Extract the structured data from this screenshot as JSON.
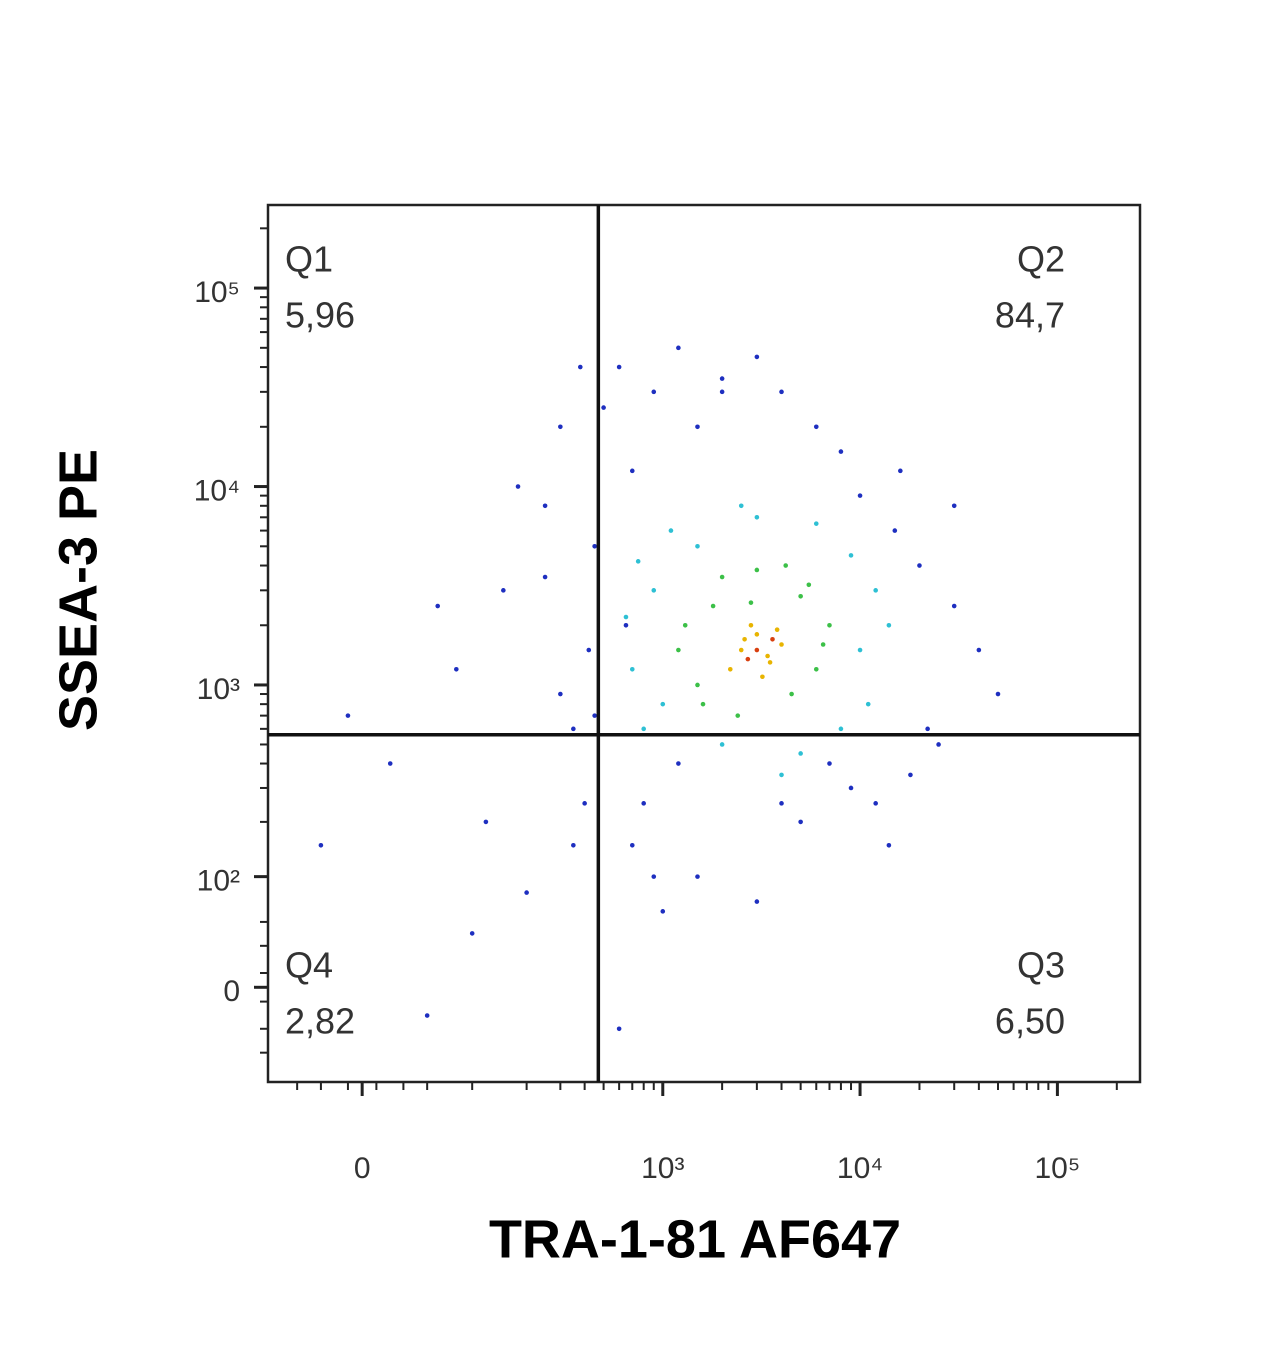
{
  "chart_data": {
    "type": "scatter",
    "x_label": "TRA-1-81 AF647",
    "y_label": "SSEA-3 PE",
    "xscale": "biexponential",
    "yscale": "biexponential",
    "xlim": [
      -80,
      262144
    ],
    "ylim": [
      -80,
      262144
    ],
    "xticks": [
      0,
      {
        "value": 1000,
        "label": "10³"
      },
      {
        "value": 10000,
        "label": "10⁴"
      },
      {
        "value": 100000,
        "label": "10⁵"
      }
    ],
    "yticks": [
      0,
      {
        "value": 100,
        "label": "10²"
      },
      {
        "value": 1000,
        "label": "10³"
      },
      {
        "value": 10000,
        "label": "10⁴"
      },
      {
        "value": 100000,
        "label": "10⁵"
      }
    ],
    "xminorticks": [
      -50,
      -30,
      -10,
      10,
      30,
      50,
      100,
      200,
      300,
      400,
      500,
      600,
      700,
      800,
      900,
      2000,
      3000,
      4000,
      5000,
      6000,
      7000,
      8000,
      9000,
      20000,
      30000,
      40000,
      50000,
      60000,
      70000,
      80000,
      90000,
      200000
    ],
    "yminorticks": [
      -50,
      -30,
      -10,
      10,
      30,
      50,
      200,
      300,
      400,
      500,
      600,
      700,
      800,
      900,
      2000,
      3000,
      4000,
      5000,
      6000,
      7000,
      8000,
      9000,
      20000,
      30000,
      40000,
      50000,
      60000,
      70000,
      80000,
      90000,
      200000
    ],
    "gate": {
      "x": 470,
      "y": 560
    },
    "quadrants": {
      "names": [
        "Q1",
        "Q2",
        "Q3",
        "Q4"
      ],
      "values": [
        5.96,
        84.7,
        6.5,
        2.82
      ],
      "value_labels": [
        "5,96",
        "84,7",
        "6,50",
        "2,82"
      ]
    },
    "series": [
      {
        "color": "#1e2fc0",
        "x": [
          -30,
          20,
          80,
          150,
          250,
          300,
          350,
          400,
          420,
          450,
          200,
          100,
          50,
          120,
          380,
          300,
          250,
          180,
          60,
          -10,
          500,
          600,
          700,
          900,
          1200,
          1500,
          2000,
          3000,
          4000,
          6000,
          8000,
          10000,
          15000,
          20000,
          30000,
          40000,
          50000,
          25000,
          18000,
          12000,
          700,
          1500,
          3000,
          5000,
          9000,
          14000,
          22000,
          800,
          1200,
          600,
          2000,
          4000,
          7000,
          900,
          450,
          350,
          30000,
          1000,
          650,
          16000
        ],
        "y": [
          150,
          400,
          1200,
          3000,
          8000,
          20000,
          600,
          250,
          1500,
          5000,
          80,
          40,
          -20,
          200,
          40000,
          900,
          3500,
          10000,
          2500,
          700,
          25000,
          40000,
          12000,
          30000,
          50000,
          20000,
          35000,
          45000,
          30000,
          20000,
          15000,
          9000,
          6000,
          4000,
          2500,
          1500,
          900,
          500,
          350,
          250,
          150,
          100,
          70,
          200,
          300,
          150,
          600,
          250,
          400,
          -30,
          30000,
          250,
          400,
          100,
          700,
          150,
          8000,
          60,
          2000,
          12000
        ]
      },
      {
        "color": "#2ec0d4",
        "x": [
          800,
          900,
          1100,
          10000,
          12000,
          700,
          1500,
          8000,
          9000,
          3000,
          2000,
          5000,
          14000,
          650,
          1000,
          6000,
          4000,
          11000,
          2500,
          750
        ],
        "y": [
          600,
          3000,
          6000,
          1500,
          3000,
          1200,
          5000,
          600,
          4500,
          7000,
          500,
          450,
          2000,
          2200,
          800,
          6500,
          350,
          800,
          8000,
          4200
        ]
      },
      {
        "color": "#3cc048",
        "x": [
          1500,
          1800,
          5000,
          6000,
          1200,
          2000,
          4500,
          7000,
          1600,
          5500,
          3000,
          2400,
          4200,
          1300,
          6500,
          2800
        ],
        "y": [
          1000,
          2500,
          2800,
          1200,
          1500,
          3500,
          900,
          2000,
          800,
          3200,
          3800,
          700,
          4000,
          2000,
          1600,
          2600
        ]
      },
      {
        "color": "#e8b400",
        "x": [
          2500,
          3000,
          3500,
          2800,
          4000,
          2200,
          3200,
          3800,
          2600,
          3400
        ],
        "y": [
          1500,
          1800,
          1300,
          2000,
          1600,
          1200,
          1100,
          1900,
          1700,
          1400
        ]
      },
      {
        "color": "#d84010",
        "x": [
          3000,
          3600,
          2700
        ],
        "y": [
          1500,
          1700,
          1350
        ]
      }
    ]
  }
}
